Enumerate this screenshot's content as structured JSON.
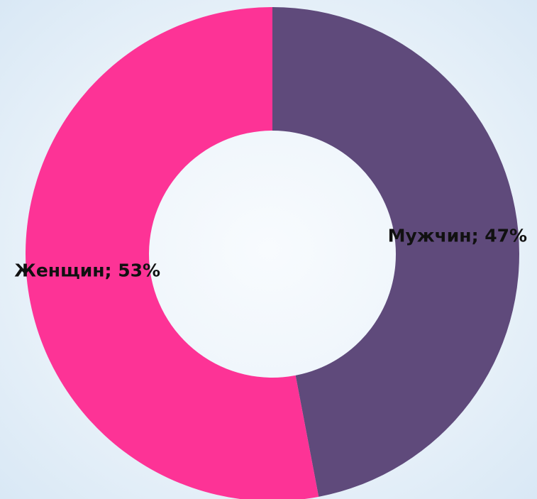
{
  "chart_data": {
    "type": "donut",
    "values": [
      47,
      53
    ],
    "value_labels": [
      "Мужчин; 47%",
      "Женщин; 53%"
    ],
    "colors": [
      "#5f4a7b",
      "#fd3396"
    ]
  }
}
